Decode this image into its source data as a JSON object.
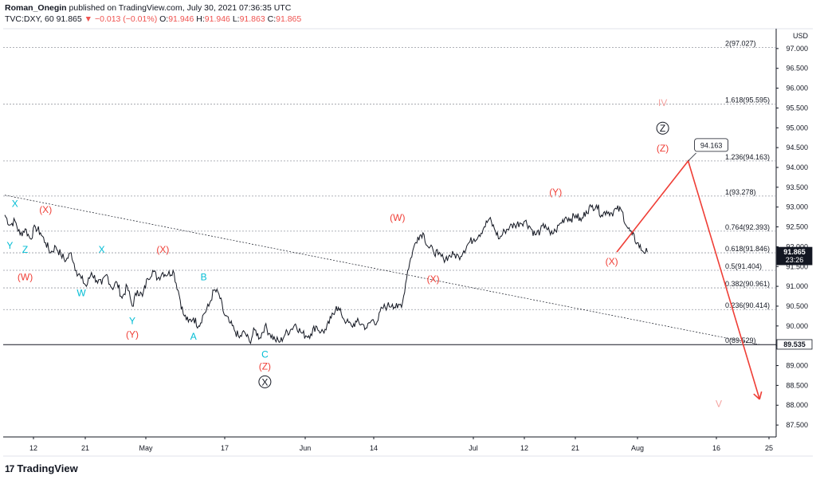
{
  "header": {
    "author": "Roman_Onegin",
    "published_text": "published on TradingView.com, July 30, 2021 07:36:35 UTC",
    "symbol": "TVC:DXY, 60",
    "last": "91.865",
    "change": "−0.013 (−0.01%)",
    "open_label": "O:",
    "open": "91.946",
    "high_label": "H:",
    "high": "91.946",
    "low_label": "L:",
    "low": "91.863",
    "close_label": "C:",
    "close": "91.865"
  },
  "colors": {
    "price": "#131722",
    "projection": "#ef3e36",
    "red_label": "#ef3e36",
    "teal_label": "#00bcd4",
    "faded_label": "#f4a3a0",
    "grid": "#9598a1"
  },
  "chart_data": {
    "type": "line",
    "currency": "USD",
    "ylim": [
      87.2,
      97.5
    ],
    "y_ticks": [
      87.5,
      88.0,
      88.5,
      89.0,
      89.5,
      90.0,
      90.5,
      91.0,
      91.5,
      92.0,
      92.5,
      93.0,
      93.5,
      94.0,
      94.5,
      95.0,
      95.5,
      96.0,
      96.5,
      97.0
    ],
    "x_ticks": [
      "12",
      "21",
      "May",
      "17",
      "Jun",
      "14",
      "Jul",
      "12",
      "21",
      "Aug",
      "16",
      "25"
    ],
    "series": [
      {
        "values": [
          92.8,
          92.55,
          92.65,
          92.3,
          92.45,
          92.2,
          92.5,
          92.35,
          92.1,
          91.85,
          92.0,
          91.8,
          91.65,
          91.85,
          91.4,
          91.2,
          91.0,
          91.35,
          91.15,
          91.05,
          91.3,
          90.95,
          91.1,
          90.7,
          91.0,
          90.5,
          90.9,
          90.75,
          91.2,
          91.4,
          91.2,
          91.35,
          91.3,
          91.4,
          90.9,
          90.3,
          90.1,
          90.2,
          90.0,
          90.3,
          90.5,
          90.9,
          90.8,
          90.3,
          90.1,
          89.9,
          89.7,
          89.85,
          89.6,
          89.9,
          89.7,
          90.0,
          89.8,
          89.65,
          89.6,
          89.8,
          89.9,
          90.05,
          89.85,
          89.75,
          89.8,
          90.0,
          89.85,
          89.9,
          90.2,
          90.5,
          90.3,
          90.1,
          90.0,
          90.1,
          90.05,
          89.95,
          90.15,
          90.1,
          90.45,
          90.5,
          90.55,
          90.45,
          90.6,
          91.4,
          91.9,
          92.25,
          92.35,
          92.0,
          91.9,
          91.8,
          91.7,
          91.75,
          91.8,
          91.75,
          91.9,
          92.1,
          92.2,
          92.3,
          92.5,
          92.7,
          92.45,
          92.2,
          92.4,
          92.5,
          92.55,
          92.6,
          92.65,
          92.5,
          92.3,
          92.4,
          92.55,
          92.3,
          92.4,
          92.6,
          92.75,
          92.7,
          92.8,
          92.65,
          92.9,
          93.0,
          93.05,
          92.8,
          92.9,
          92.85,
          92.95,
          92.9,
          92.5,
          92.3,
          92.1,
          91.9,
          91.865
        ]
      }
    ],
    "retracement_levels": [
      {
        "label": "2(97.027)",
        "value": 97.027
      },
      {
        "label": "1.618(95.595)",
        "value": 95.595
      },
      {
        "label": "1.236(94.163)",
        "value": 94.163
      },
      {
        "label": "1(93.278)",
        "value": 93.278
      },
      {
        "label": "0.764(92.393)",
        "value": 92.393
      },
      {
        "label": "0.618(91.846)",
        "value": 91.846
      },
      {
        "label": "0.5(91.404)",
        "value": 91.404
      },
      {
        "label": "0.382(90.961)",
        "value": 90.961
      },
      {
        "label": "0.236(90.414)",
        "value": 90.414
      },
      {
        "label": "0(89.529)",
        "value": 89.529
      }
    ],
    "projection": [
      {
        "day": 120,
        "value": 91.865
      },
      {
        "day": 134,
        "value": 94.163
      },
      {
        "day": 148,
        "value": 88.15
      }
    ],
    "trendline": [
      {
        "day": 0,
        "value": 93.3
      },
      {
        "day": 148,
        "value": 89.53
      }
    ],
    "price_badges": [
      {
        "value": 91.865,
        "text": "91.865",
        "subtext": "23:26",
        "style": "dark"
      },
      {
        "value": 89.535,
        "text": "89.535",
        "style": "outline"
      }
    ],
    "callout": {
      "text": "94.163",
      "day": 134,
      "value": 94.163
    },
    "wave_labels": [
      {
        "text": "X",
        "color": "teal",
        "day": 2,
        "value": 93.0
      },
      {
        "text": "(X)",
        "color": "red",
        "day": 8,
        "value": 92.85
      },
      {
        "text": "Y",
        "color": "teal",
        "day": 1,
        "value": 91.95
      },
      {
        "text": "Z",
        "color": "teal",
        "day": 4,
        "value": 91.85
      },
      {
        "text": "(W)",
        "color": "red",
        "day": 4,
        "value": 91.15
      },
      {
        "text": "W",
        "color": "teal",
        "day": 15,
        "value": 90.75
      },
      {
        "text": "X",
        "color": "teal",
        "day": 19,
        "value": 91.85
      },
      {
        "text": "Y",
        "color": "teal",
        "day": 25,
        "value": 90.05
      },
      {
        "text": "(Y)",
        "color": "red",
        "day": 25,
        "value": 89.7
      },
      {
        "text": "(X)",
        "color": "red",
        "day": 31,
        "value": 91.85
      },
      {
        "text": "B",
        "color": "teal",
        "day": 39,
        "value": 91.15
      },
      {
        "text": "A",
        "color": "teal",
        "day": 37,
        "value": 89.65
      },
      {
        "text": "C",
        "color": "teal",
        "day": 51,
        "value": 89.2
      },
      {
        "text": "(Z)",
        "color": "red",
        "day": 51,
        "value": 88.9
      },
      {
        "text": "X",
        "color": "black",
        "circled": true,
        "day": 51,
        "value": 88.5
      },
      {
        "text": "(W)",
        "color": "red",
        "day": 77,
        "value": 92.65
      },
      {
        "text": "(X)",
        "color": "red",
        "day": 84,
        "value": 91.1
      },
      {
        "text": "(Y)",
        "color": "red",
        "day": 108,
        "value": 93.3
      },
      {
        "text": "(X)",
        "color": "red",
        "day": 119,
        "value": 91.55
      },
      {
        "text": "Z",
        "color": "black",
        "circled": true,
        "day": 129,
        "value": 94.9
      },
      {
        "text": "(Z)",
        "color": "red",
        "day": 129,
        "value": 94.4
      },
      {
        "text": "IV",
        "color": "faded",
        "day": 129,
        "value": 95.55
      },
      {
        "text": "V",
        "color": "faded",
        "day": 140,
        "value": 87.95
      }
    ]
  },
  "footer": {
    "logo_text": "TradingView",
    "logo_mark": "17"
  }
}
